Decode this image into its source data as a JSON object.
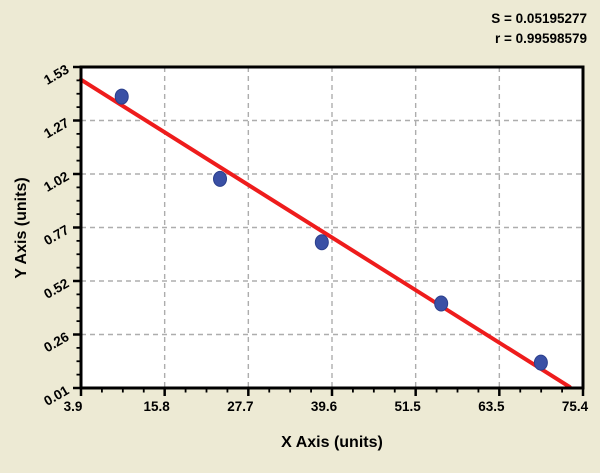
{
  "stats": {
    "s_value": "S = 0.05195277",
    "r_value": "r = 0.99598579"
  },
  "chart_data": {
    "type": "scatter",
    "title": "",
    "xlabel": "X Axis (units)",
    "ylabel": "Y Axis (units)",
    "x_tick_labels": [
      "3.9",
      "15.8",
      "27.7",
      "39.6",
      "51.5",
      "63.5",
      "75.4"
    ],
    "y_tick_labels": [
      "0.01",
      "0.26",
      "0.52",
      "0.77",
      "1.02",
      "1.27",
      "1.53"
    ],
    "xlim": [
      3.9,
      75.4
    ],
    "ylim": [
      0.01,
      1.53
    ],
    "minor_ticks_between_major": 3,
    "grid": true,
    "legend": "none",
    "points": [
      {
        "x": 9.7,
        "y": 1.39
      },
      {
        "x": 23.7,
        "y": 1.0
      },
      {
        "x": 38.2,
        "y": 0.7
      },
      {
        "x": 55.2,
        "y": 0.41
      },
      {
        "x": 69.4,
        "y": 0.13
      }
    ],
    "fit_line": {
      "x1": 3.9,
      "y1": 1.47,
      "x2": 73.5,
      "y2": 0.015
    },
    "annotations": [
      "S = 0.05195277",
      "r = 0.99598579"
    ],
    "colors": {
      "background": "#EDEAD4",
      "plot_background": "#FFFFFF",
      "fit_line": "#EE1C1C",
      "point_fill": "#3A50A5",
      "point_edge": "#2B3F8C",
      "grid": "#ADADAD",
      "axis": "#000000",
      "text": "#000000"
    }
  }
}
